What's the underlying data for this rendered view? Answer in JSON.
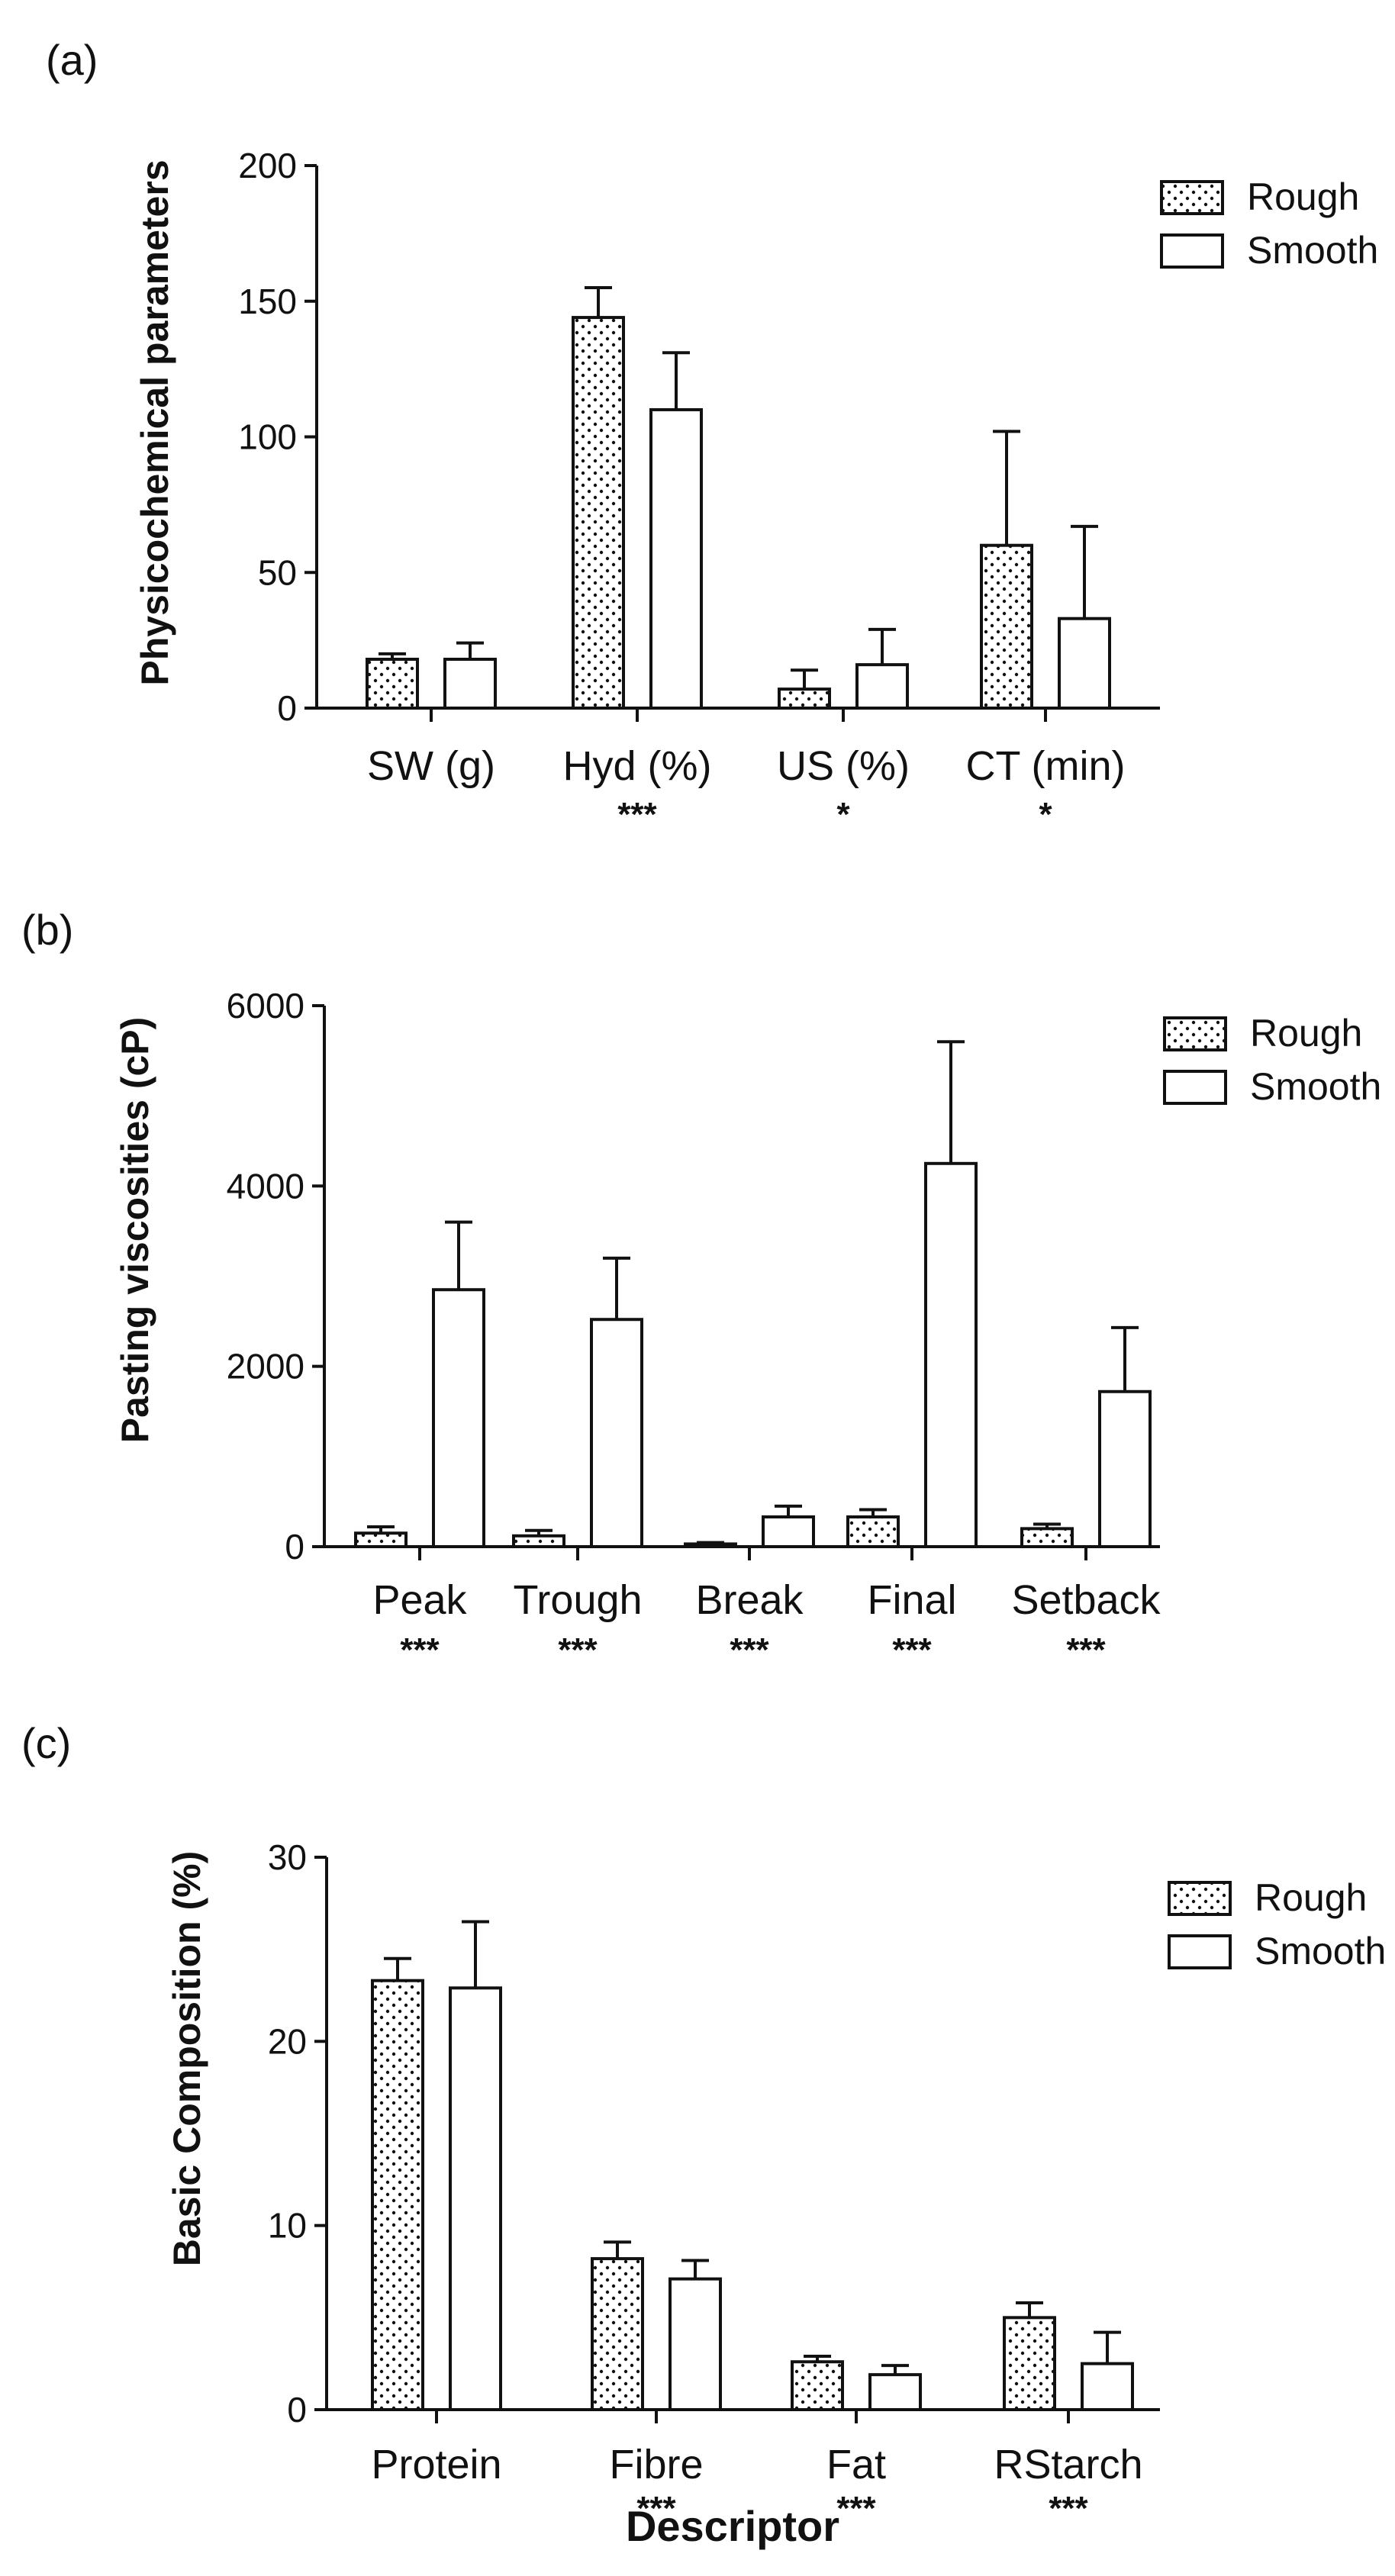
{
  "figure": {
    "xlabel": "Descriptor"
  },
  "colors": {
    "ink": "#111111",
    "background": "#ffffff",
    "dots": "#111111"
  },
  "chart_data": [
    {
      "type": "bar",
      "panel": "(a)",
      "ylabel": "Physicochemical parameters",
      "xlabel": "",
      "ylim": [
        0,
        200
      ],
      "yticks": [
        0,
        50,
        100,
        150,
        200
      ],
      "categories": [
        "SW (g)",
        "Hyd (%)",
        "US (%)",
        "CT (min)"
      ],
      "significance": [
        "",
        "***",
        "*",
        "*"
      ],
      "series": [
        {
          "name": "Rough",
          "pattern": "dotted",
          "values": [
            18,
            144,
            7,
            60
          ],
          "errors": [
            2,
            11,
            7,
            42
          ]
        },
        {
          "name": "Smooth",
          "pattern": "open",
          "values": [
            18,
            110,
            16,
            33
          ],
          "errors": [
            6,
            21,
            13,
            34
          ]
        }
      ],
      "legend": "top-right",
      "grid": false
    },
    {
      "type": "bar",
      "panel": "(b)",
      "ylabel": "Pasting viscosities (cP)",
      "xlabel": "",
      "ylim": [
        0,
        6000
      ],
      "yticks": [
        0,
        2000,
        4000,
        6000
      ],
      "categories": [
        "Peak",
        "Trough",
        "Break",
        "Final",
        "Setback"
      ],
      "significance": [
        "***",
        "***",
        "***",
        "***",
        "***"
      ],
      "series": [
        {
          "name": "Rough",
          "pattern": "dotted",
          "values": [
            150,
            120,
            30,
            330,
            200
          ],
          "errors": [
            70,
            60,
            15,
            80,
            50
          ]
        },
        {
          "name": "Smooth",
          "pattern": "open",
          "values": [
            2850,
            2520,
            330,
            4250,
            1720
          ],
          "errors": [
            750,
            680,
            120,
            1350,
            710
          ]
        }
      ],
      "legend": "top-right",
      "grid": false
    },
    {
      "type": "bar",
      "panel": "(c)",
      "ylabel": "Basic Composition (%)",
      "xlabel": "Descriptor",
      "ylim": [
        0,
        30
      ],
      "yticks": [
        0,
        10,
        20,
        30
      ],
      "categories": [
        "Protein",
        "Fibre",
        "Fat",
        "RStarch"
      ],
      "significance": [
        "",
        "***",
        "***",
        "***"
      ],
      "series": [
        {
          "name": "Rough",
          "pattern": "dotted",
          "values": [
            23.3,
            8.2,
            2.6,
            5.0
          ],
          "errors": [
            1.2,
            0.9,
            0.3,
            0.8
          ]
        },
        {
          "name": "Smooth",
          "pattern": "open",
          "values": [
            22.9,
            7.1,
            1.9,
            2.5
          ],
          "errors": [
            3.6,
            1.0,
            0.5,
            1.7
          ]
        }
      ],
      "legend": "top-right",
      "grid": false
    }
  ]
}
